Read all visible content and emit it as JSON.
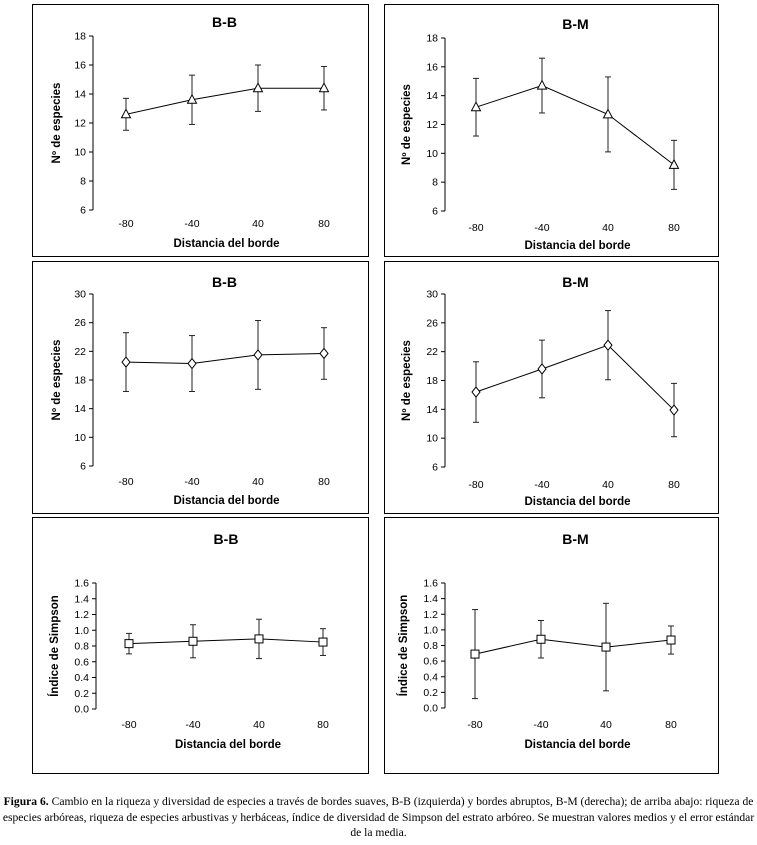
{
  "chart_data": [
    {
      "type": "line",
      "title": "B-B",
      "xlabel": "Distancia del borde",
      "ylabel": "Nº de especies",
      "categories": [
        "-80",
        "-40",
        "40",
        "80"
      ],
      "ylim": [
        6,
        18
      ],
      "yticks": [
        "6",
        "8",
        "10",
        "12",
        "14",
        "16",
        "18"
      ],
      "marker": "triangle",
      "series": [
        {
          "name": "B-B",
          "values": [
            12.6,
            13.6,
            14.4,
            14.4
          ],
          "error": [
            1.1,
            1.7,
            1.6,
            1.5
          ]
        }
      ]
    },
    {
      "type": "line",
      "title": "B-M",
      "xlabel": "Distancia del borde",
      "ylabel": "Nº de especies",
      "categories": [
        "-80",
        "-40",
        "40",
        "80"
      ],
      "ylim": [
        6,
        18
      ],
      "yticks": [
        "6",
        "8",
        "10",
        "12",
        "14",
        "16",
        "18"
      ],
      "marker": "triangle",
      "series": [
        {
          "name": "B-M",
          "values": [
            13.2,
            14.7,
            12.7,
            9.2
          ],
          "error": [
            2.0,
            1.9,
            2.6,
            1.7
          ]
        }
      ]
    },
    {
      "type": "line",
      "title": "B-B",
      "xlabel": "Distancia del borde",
      "ylabel": "Nº de especies",
      "categories": [
        "-80",
        "-40",
        "40",
        "80"
      ],
      "ylim": [
        6,
        30
      ],
      "yticks": [
        "6",
        "10",
        "14",
        "18",
        "22",
        "26",
        "30"
      ],
      "marker": "diamond",
      "series": [
        {
          "name": "B-B",
          "values": [
            20.5,
            20.3,
            21.5,
            21.7
          ],
          "error": [
            4.1,
            3.9,
            4.8,
            3.6
          ]
        }
      ]
    },
    {
      "type": "line",
      "title": "B-M",
      "xlabel": "Distancia del borde",
      "ylabel": "Nº de especies",
      "categories": [
        "-80",
        "-40",
        "40",
        "80"
      ],
      "ylim": [
        6,
        30
      ],
      "yticks": [
        "6",
        "10",
        "14",
        "18",
        "22",
        "26",
        "30"
      ],
      "marker": "diamond",
      "series": [
        {
          "name": "B-M",
          "values": [
            16.4,
            19.6,
            22.9,
            13.9
          ],
          "error": [
            4.2,
            4.0,
            4.8,
            3.7
          ]
        }
      ]
    },
    {
      "type": "line",
      "title": "B-B",
      "xlabel": "Distancia del borde",
      "ylabel": "Índice de Simpson",
      "categories": [
        "-80",
        "-40",
        "40",
        "80"
      ],
      "ylim": [
        0,
        1.6
      ],
      "yticks": [
        "0.0",
        "0.2",
        "0.4",
        "0.6",
        "0.8",
        "1.0",
        "1.2",
        "1.4",
        "1.6"
      ],
      "marker": "square",
      "series": [
        {
          "name": "B-B",
          "values": [
            0.83,
            0.86,
            0.89,
            0.85
          ],
          "error": [
            0.13,
            0.21,
            0.25,
            0.17
          ]
        }
      ]
    },
    {
      "type": "line",
      "title": "B-M",
      "xlabel": "Distancia del borde",
      "ylabel": "Índice de Simpson",
      "categories": [
        "-80",
        "-40",
        "40",
        "80"
      ],
      "ylim": [
        0,
        1.6
      ],
      "yticks": [
        "0.0",
        "0.2",
        "0.4",
        "0.6",
        "0.8",
        "1.0",
        "1.2",
        "1.4",
        "1.6"
      ],
      "marker": "square",
      "series": [
        {
          "name": "B-M",
          "values": [
            0.69,
            0.88,
            0.78,
            0.87
          ],
          "error": [
            0.57,
            0.24,
            0.56,
            0.18
          ]
        }
      ]
    }
  ],
  "caption": {
    "label": "Figura 6.",
    "text": " Cambio en la riqueza y diversidad de especies a través de bordes suaves, B-B (izquierda) y bordes abruptos, B-M (derecha); de arriba abajo: riqueza de especies arbóreas, riqueza de especies arbustivas y herbáceas, índice de diversidad de Simpson del estrato arbóreo. Se muestran valores medios y el error estándar de la media."
  }
}
